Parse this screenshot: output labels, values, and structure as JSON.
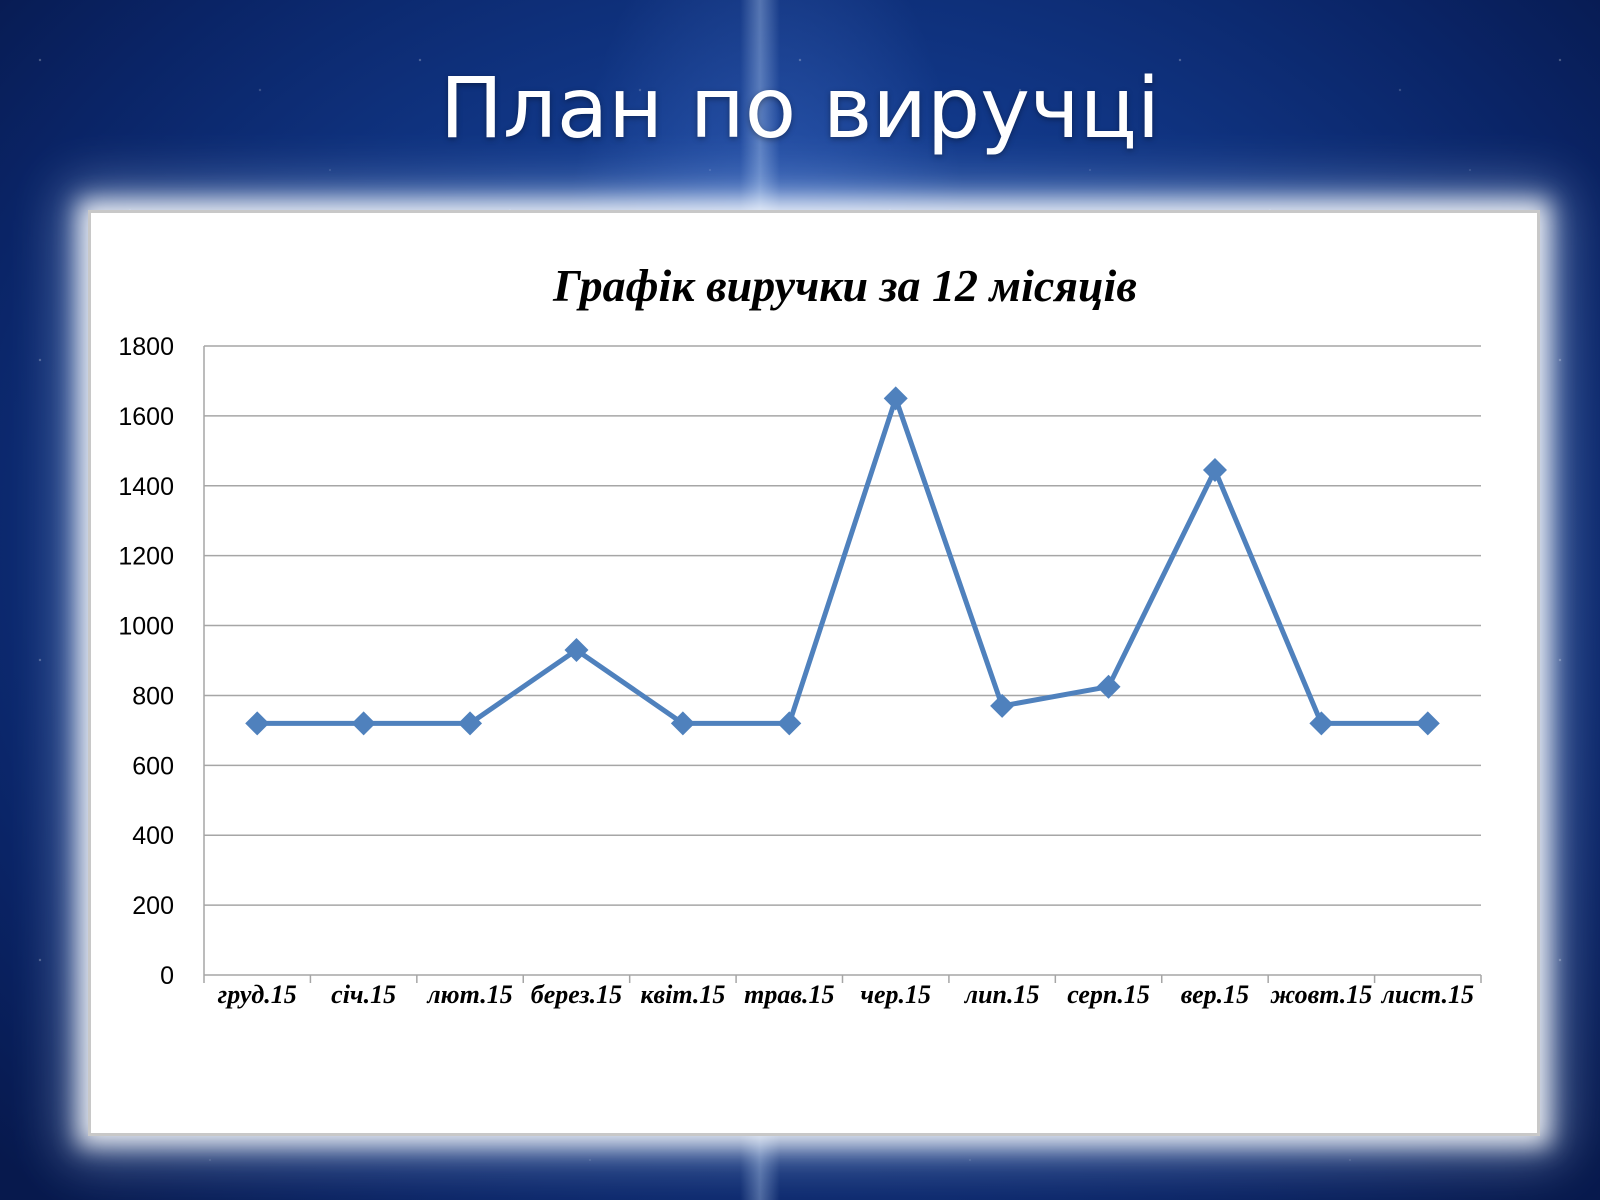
{
  "slide": {
    "title": "План по виручці"
  },
  "chart_data": {
    "type": "line",
    "title": "Графік виручки за 12 місяців",
    "xlabel": "",
    "ylabel": "",
    "categories": [
      "груд.15",
      "січ.15",
      "лют.15",
      "берез.15",
      "квіт.15",
      "трав.15",
      "чер.15",
      "лип.15",
      "серп.15",
      "вер.15",
      "жовт.15",
      "лист.15"
    ],
    "series": [
      {
        "values": [
          720,
          720,
          720,
          930,
          720,
          720,
          1650,
          770,
          825,
          1445,
          720,
          720
        ],
        "color": "#4f81bd",
        "marker": "diamond"
      }
    ],
    "ylim": [
      0,
      1800
    ],
    "yticks": [
      0,
      200,
      400,
      600,
      800,
      1000,
      1200,
      1400,
      1600,
      1800
    ],
    "grid": true,
    "legend": "none"
  }
}
